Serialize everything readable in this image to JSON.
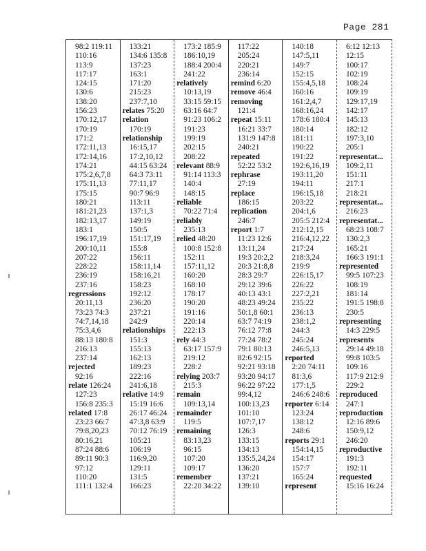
{
  "header": {
    "page_label": "Page 281"
  },
  "columns": [
    [
      [
        "",
        "98:2 119:11"
      ],
      [
        "",
        "110:16"
      ],
      [
        "",
        "113:9"
      ],
      [
        "",
        "117:17"
      ],
      [
        "",
        "124:15"
      ],
      [
        "",
        "130:6"
      ],
      [
        "",
        "138:20"
      ],
      [
        "",
        "156:23"
      ],
      [
        "",
        "170:12,17"
      ],
      [
        "",
        "170:19"
      ],
      [
        "",
        "171:2"
      ],
      [
        "",
        "172:11,13"
      ],
      [
        "",
        "172:14,16"
      ],
      [
        "",
        "174:21"
      ],
      [
        "",
        "175:2,6,7,8"
      ],
      [
        "",
        "175:11,13"
      ],
      [
        "",
        "175:15"
      ],
      [
        "",
        "180:21"
      ],
      [
        "",
        "181:21,23"
      ],
      [
        "",
        "182:13,17"
      ],
      [
        "",
        "183:1"
      ],
      [
        "",
        "196:17,19"
      ],
      [
        "",
        "200:10,11"
      ],
      [
        "",
        "207:22"
      ],
      [
        "",
        "228:22"
      ],
      [
        "",
        "236:19"
      ],
      [
        "",
        "237:16"
      ],
      [
        "regressions",
        ""
      ],
      [
        "",
        "20:11,13"
      ],
      [
        "",
        "73:23 74:3"
      ],
      [
        "",
        "74:7,14,18"
      ],
      [
        "",
        "75:3,4,6"
      ],
      [
        "",
        "88:13 180:8"
      ],
      [
        "",
        "216:13"
      ],
      [
        "",
        "237:14"
      ],
      [
        "rejected",
        ""
      ],
      [
        "",
        "92:16"
      ],
      [
        "relate",
        "126:24"
      ],
      [
        "",
        "127:23"
      ],
      [
        "",
        "156:8 235:3"
      ],
      [
        "related",
        "17:8"
      ],
      [
        "",
        "23:23 66:7"
      ],
      [
        "",
        "79:8,20,23"
      ],
      [
        "",
        "80:16,21"
      ],
      [
        "",
        "87:24 88:6"
      ],
      [
        "",
        "89:11 90:3"
      ],
      [
        "",
        "97:12"
      ],
      [
        "",
        "110:20"
      ],
      [
        "",
        "111:1 132:4"
      ]
    ],
    [
      [
        "",
        "133:21"
      ],
      [
        "",
        "134:6 135:8"
      ],
      [
        "",
        "137:23"
      ],
      [
        "",
        "163:1"
      ],
      [
        "",
        "171:20"
      ],
      [
        "",
        "215:23"
      ],
      [
        "",
        "237:7,10"
      ],
      [
        "relates",
        "75:20"
      ],
      [
        "relation",
        ""
      ],
      [
        "",
        "170:19"
      ],
      [
        "relationship",
        ""
      ],
      [
        "",
        "16:15,17"
      ],
      [
        "",
        "17:2,10,12"
      ],
      [
        "",
        "44:15 63:24"
      ],
      [
        "",
        "64:3 73:11"
      ],
      [
        "",
        "77:11,17"
      ],
      [
        "",
        "90:7 96:9"
      ],
      [
        "",
        "113:11"
      ],
      [
        "",
        "137:1,3"
      ],
      [
        "",
        "149:19"
      ],
      [
        "",
        "150:5"
      ],
      [
        "",
        "151:17,19"
      ],
      [
        "",
        "155:8"
      ],
      [
        "",
        "156:11"
      ],
      [
        "",
        "158:11,14"
      ],
      [
        "",
        "158:16,21"
      ],
      [
        "",
        "158:23"
      ],
      [
        "",
        "192:12"
      ],
      [
        "",
        "236:20"
      ],
      [
        "",
        "237:21"
      ],
      [
        "",
        "242:9"
      ],
      [
        "relationships",
        ""
      ],
      [
        "",
        "151:3"
      ],
      [
        "",
        "155:13"
      ],
      [
        "",
        "162:13"
      ],
      [
        "",
        "189:23"
      ],
      [
        "",
        "222:16"
      ],
      [
        "",
        "241:6,18"
      ],
      [
        "relative",
        "14:9"
      ],
      [
        "",
        "15:19 16:6"
      ],
      [
        "",
        "26:17 46:24"
      ],
      [
        "",
        "47:3,8 63:9"
      ],
      [
        "",
        "70:12 76:19"
      ],
      [
        "",
        "105:21"
      ],
      [
        "",
        "106:19"
      ],
      [
        "",
        "116:9,20"
      ],
      [
        "",
        "129:11"
      ],
      [
        "",
        "131:5"
      ],
      [
        "",
        "166:23"
      ]
    ],
    [
      [
        "",
        "173:2 185:9"
      ],
      [
        "",
        "186:10,19"
      ],
      [
        "",
        "188:4 200:4"
      ],
      [
        "",
        "241:22"
      ],
      [
        "relatively",
        ""
      ],
      [
        "",
        "10:13,19"
      ],
      [
        "",
        "33:15 59:15"
      ],
      [
        "",
        "63:16 64:7"
      ],
      [
        "",
        "91:23 106:2"
      ],
      [
        "",
        "191:23"
      ],
      [
        "",
        "199:19"
      ],
      [
        "",
        "202:15"
      ],
      [
        "",
        "208:22"
      ],
      [
        "relevant",
        "88:9"
      ],
      [
        "",
        "91:14 113:3"
      ],
      [
        "",
        "140:4"
      ],
      [
        "",
        "148:15"
      ],
      [
        "reliable",
        ""
      ],
      [
        "",
        "70:22 71:4"
      ],
      [
        "reliably",
        ""
      ],
      [
        "",
        "235:13"
      ],
      [
        "relied",
        "48:20"
      ],
      [
        "",
        "100:8 152:8"
      ],
      [
        "",
        "152:11"
      ],
      [
        "",
        "157:11,12"
      ],
      [
        "",
        "160:20"
      ],
      [
        "",
        "168:10"
      ],
      [
        "",
        "178:17"
      ],
      [
        "",
        "190:20"
      ],
      [
        "",
        "191:16"
      ],
      [
        "",
        "220:14"
      ],
      [
        "",
        "222:13"
      ],
      [
        "rely",
        "44:3"
      ],
      [
        "",
        "63:17 157:9"
      ],
      [
        "",
        "219:12"
      ],
      [
        "",
        "228:2"
      ],
      [
        "relying",
        "203:7"
      ],
      [
        "",
        "215:3"
      ],
      [
        "remain",
        ""
      ],
      [
        "",
        "109:13,14"
      ],
      [
        "remainder",
        ""
      ],
      [
        "",
        "119:5"
      ],
      [
        "remaining",
        ""
      ],
      [
        "",
        "83:13,23"
      ],
      [
        "",
        "96:15"
      ],
      [
        "",
        "107:20"
      ],
      [
        "",
        "109:17"
      ],
      [
        "remember",
        ""
      ],
      [
        "",
        "22:20 34:22"
      ]
    ],
    [
      [
        "",
        "117:22"
      ],
      [
        "",
        "205:24"
      ],
      [
        "",
        "220:21"
      ],
      [
        "",
        "236:14"
      ],
      [
        "remind",
        "6:20"
      ],
      [
        "remove",
        "46:4"
      ],
      [
        "removing",
        ""
      ],
      [
        "",
        "121:4"
      ],
      [
        "repeat",
        "15:11"
      ],
      [
        "",
        "16:21 33:7"
      ],
      [
        "",
        "131:9 147:8"
      ],
      [
        "",
        "240:21"
      ],
      [
        "repeated",
        ""
      ],
      [
        "",
        "52:22 53:2"
      ],
      [
        "rephrase",
        ""
      ],
      [
        "",
        "27:19"
      ],
      [
        "replace",
        ""
      ],
      [
        "",
        "186:15"
      ],
      [
        "replication",
        ""
      ],
      [
        "",
        "246:7"
      ],
      [
        "report",
        "1:7"
      ],
      [
        "",
        "11:23 12:6"
      ],
      [
        "",
        "13:11,24"
      ],
      [
        "",
        "19:3 20:2,2"
      ],
      [
        "",
        "20:3 21:8,8"
      ],
      [
        "",
        "28:3 29:7"
      ],
      [
        "",
        "29:12 39:6"
      ],
      [
        "",
        "40:13 43:1"
      ],
      [
        "",
        "48:23 49:24"
      ],
      [
        "",
        "50:1,8 60:1"
      ],
      [
        "",
        "63:7 74:19"
      ],
      [
        "",
        "76:12 77:8"
      ],
      [
        "",
        "77:24 78:2"
      ],
      [
        "",
        "79:1 80:13"
      ],
      [
        "",
        "82:6 92:15"
      ],
      [
        "",
        "92:21 93:18"
      ],
      [
        "",
        "93:20 94:17"
      ],
      [
        "",
        "96:22 97:22"
      ],
      [
        "",
        "99:4,12"
      ],
      [
        "",
        "100:13,23"
      ],
      [
        "",
        "101:10"
      ],
      [
        "",
        "107:7,17"
      ],
      [
        "",
        "126:3"
      ],
      [
        "",
        "133:15"
      ],
      [
        "",
        "134:13"
      ],
      [
        "",
        "135:5,24,24"
      ],
      [
        "",
        "136:20"
      ],
      [
        "",
        "137:21"
      ],
      [
        "",
        "139:10"
      ]
    ],
    [
      [
        "",
        "140:18"
      ],
      [
        "",
        "147:5,11"
      ],
      [
        "",
        "149:7"
      ],
      [
        "",
        "152:15"
      ],
      [
        "",
        "155:4,5,18"
      ],
      [
        "",
        "160:16"
      ],
      [
        "",
        "161:2,4,7"
      ],
      [
        "",
        "168:16,24"
      ],
      [
        "",
        "178:6 180:4"
      ],
      [
        "",
        "180:14"
      ],
      [
        "",
        "181:11"
      ],
      [
        "",
        "190:22"
      ],
      [
        "",
        "191:22"
      ],
      [
        "",
        "192:6,16,19"
      ],
      [
        "",
        "193:11,20"
      ],
      [
        "",
        "194:11"
      ],
      [
        "",
        "196:15,18"
      ],
      [
        "",
        "203:22"
      ],
      [
        "",
        "204:1,6"
      ],
      [
        "",
        "205:5 212:4"
      ],
      [
        "",
        "212:12,15"
      ],
      [
        "",
        "216:4,12,22"
      ],
      [
        "",
        "217:24"
      ],
      [
        "",
        "218:3,24"
      ],
      [
        "",
        "219:9"
      ],
      [
        "",
        "226:15,17"
      ],
      [
        "",
        "226:22"
      ],
      [
        "",
        "227:2,21"
      ],
      [
        "",
        "235:22"
      ],
      [
        "",
        "236:13"
      ],
      [
        "",
        "238:1,2"
      ],
      [
        "",
        "244:3"
      ],
      [
        "",
        "245:24"
      ],
      [
        "",
        "246:5,13"
      ],
      [
        "reported",
        ""
      ],
      [
        "",
        "2:20 74:11"
      ],
      [
        "",
        "81:3,6"
      ],
      [
        "",
        "177:1,5"
      ],
      [
        "",
        "246:6 248:6"
      ],
      [
        "reporter",
        "6:14"
      ],
      [
        "",
        "123:24"
      ],
      [
        "",
        "138:12"
      ],
      [
        "",
        "248:6"
      ],
      [
        "reports",
        "29:1"
      ],
      [
        "",
        "154:14,15"
      ],
      [
        "",
        "154:17"
      ],
      [
        "",
        "157:7"
      ],
      [
        "",
        "165:24"
      ],
      [
        "represent",
        ""
      ]
    ],
    [
      [
        "",
        "6:12 12:13"
      ],
      [
        "",
        "12:15"
      ],
      [
        "",
        "100:17"
      ],
      [
        "",
        "102:19"
      ],
      [
        "",
        "108:24"
      ],
      [
        "",
        "109:19"
      ],
      [
        "",
        "129:17,19"
      ],
      [
        "",
        "142:17"
      ],
      [
        "",
        "145:13"
      ],
      [
        "",
        "182:12"
      ],
      [
        "",
        "197:3,10"
      ],
      [
        "",
        "205:1"
      ],
      [
        "representat...",
        ""
      ],
      [
        "",
        "109:2,11"
      ],
      [
        "",
        "151:11"
      ],
      [
        "",
        "217:1"
      ],
      [
        "",
        "218:21"
      ],
      [
        "representat...",
        ""
      ],
      [
        "",
        "216:23"
      ],
      [
        "representat...",
        ""
      ],
      [
        "",
        "68:23 108:7"
      ],
      [
        "",
        "130:2,3"
      ],
      [
        "",
        "165:21"
      ],
      [
        "",
        "166:3 191:1"
      ],
      [
        "represented",
        ""
      ],
      [
        "",
        "99:5 107:23"
      ],
      [
        "",
        "108:19"
      ],
      [
        "",
        "181:14"
      ],
      [
        "",
        "191:5 198:8"
      ],
      [
        "",
        "230:5"
      ],
      [
        "representing",
        ""
      ],
      [
        "",
        "14:3 229:5"
      ],
      [
        "represents",
        ""
      ],
      [
        "",
        "29:14 49:18"
      ],
      [
        "",
        "99:8 103:5"
      ],
      [
        "",
        "109:16"
      ],
      [
        "",
        "117:9 212:9"
      ],
      [
        "",
        "229:2"
      ],
      [
        "reproduced",
        ""
      ],
      [
        "",
        "247:1"
      ],
      [
        "reproduction",
        ""
      ],
      [
        "",
        "12:16 89:6"
      ],
      [
        "",
        "150:9,12"
      ],
      [
        "",
        "246:20"
      ],
      [
        "reproductive",
        ""
      ],
      [
        "",
        "191:3"
      ],
      [
        "",
        "192:11"
      ],
      [
        "requested",
        ""
      ],
      [
        "",
        "15:16 16:24"
      ]
    ]
  ]
}
